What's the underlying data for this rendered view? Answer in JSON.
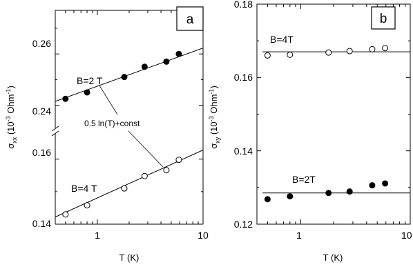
{
  "chart_data": [
    {
      "panel": "a",
      "type": "scatter",
      "xlabel": "T (K)",
      "ylabel_main": "σ",
      "ylabel_sub": "xx",
      "ylabel_rest": " (10",
      "ylabel_exp1": "-3",
      "ylabel_unit": " Ohm",
      "ylabel_exp2": "-1",
      "ylabel_close": ")",
      "xscale": "log",
      "xlim": [
        0.4,
        10
      ],
      "x_ticks": [
        "1",
        "10"
      ],
      "axis_break": true,
      "upper_segment": {
        "ylim": [
          0.231,
          0.277
        ],
        "y_ticks": [
          "0.24",
          "0.26"
        ]
      },
      "lower_segment": {
        "ylim": [
          0.14,
          0.168
        ],
        "y_ticks": [
          "0.14",
          "0.16"
        ]
      },
      "annotation": "0.5 ln(T)+const",
      "series": [
        {
          "name": "B=2 T",
          "marker": "filled",
          "segment": "upper",
          "x": [
            0.5,
            0.8,
            1.8,
            2.8,
            4.5,
            5.9
          ],
          "y": [
            0.2425,
            0.245,
            0.251,
            0.255,
            0.257,
            0.26
          ],
          "fit": {
            "x": [
              0.4,
              10
            ],
            "y": [
              0.2415,
              0.2623
            ]
          }
        },
        {
          "name": "B=4 T",
          "marker": "open",
          "segment": "lower",
          "x": [
            0.5,
            0.8,
            1.8,
            2.8,
            4.5,
            5.9
          ],
          "y": [
            0.143,
            0.1458,
            0.151,
            0.1548,
            0.1566,
            0.1598
          ],
          "fit": {
            "x": [
              0.4,
              10
            ],
            "y": [
              0.1422,
              0.1628
            ]
          }
        }
      ]
    },
    {
      "panel": "b",
      "type": "scatter",
      "xlabel": "T (K)",
      "ylabel_main": "σ",
      "ylabel_sub": "xy",
      "ylabel_rest": " (10",
      "ylabel_exp1": "-3",
      "ylabel_unit": " Ohm",
      "ylabel_exp2": "-1",
      "ylabel_close": ")",
      "xscale": "log",
      "xlim": [
        0.4,
        10
      ],
      "ylim": [
        0.12,
        0.18
      ],
      "x_ticks": [
        "1",
        "10"
      ],
      "y_ticks": [
        "0.12",
        "0.14",
        "0.16",
        "0.18"
      ],
      "series": [
        {
          "name": "B=4T",
          "marker": "open",
          "x": [
            0.5,
            0.8,
            1.8,
            2.8,
            4.5,
            5.9
          ],
          "y": [
            0.166,
            0.1662,
            0.1668,
            0.1672,
            0.1677,
            0.168
          ],
          "fit": {
            "x": [
              0.45,
              10
            ],
            "y": [
              0.167,
              0.167
            ]
          }
        },
        {
          "name": "B=2T",
          "marker": "filled",
          "x": [
            0.5,
            0.8,
            1.8,
            2.8,
            4.5,
            5.9
          ],
          "y": [
            0.1268,
            0.1276,
            0.1285,
            0.1289,
            0.1306,
            0.1311
          ],
          "fit": {
            "x": [
              0.45,
              10
            ],
            "y": [
              0.1285,
              0.1285
            ]
          }
        }
      ]
    }
  ]
}
